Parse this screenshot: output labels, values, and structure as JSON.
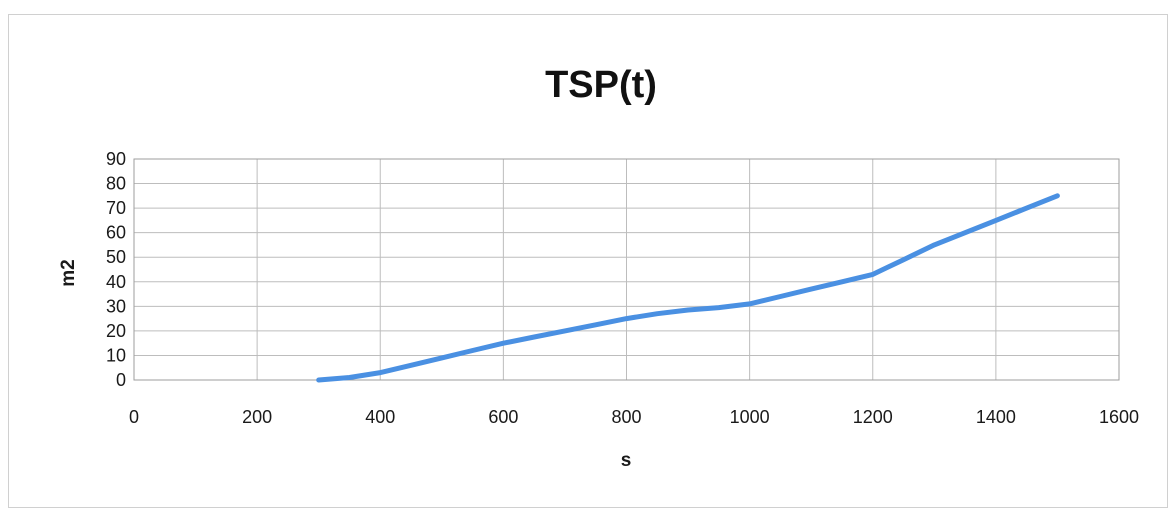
{
  "chart_data": {
    "type": "line",
    "title": "TSP(t)",
    "xlabel": "s",
    "ylabel": "m2",
    "xlim": [
      0,
      1600
    ],
    "ylim": [
      0,
      90
    ],
    "x_ticks": [
      0,
      200,
      400,
      600,
      800,
      1000,
      1200,
      1400,
      1600
    ],
    "y_ticks": [
      0,
      10,
      20,
      30,
      40,
      50,
      60,
      70,
      80,
      90
    ],
    "grid": true,
    "legend": "none",
    "series": [
      {
        "color": "#4a90e2",
        "x": [
          300,
          350,
          400,
          450,
          500,
          550,
          600,
          650,
          700,
          750,
          800,
          850,
          900,
          950,
          1000,
          1050,
          1100,
          1150,
          1200,
          1250,
          1300,
          1350,
          1400,
          1450,
          1500
        ],
        "y": [
          0,
          1,
          3,
          6,
          9,
          12,
          15,
          17.5,
          20,
          22.5,
          25,
          27,
          28.5,
          29.5,
          31,
          34,
          37,
          40,
          43,
          49,
          55,
          60,
          65,
          70,
          75
        ]
      }
    ]
  }
}
